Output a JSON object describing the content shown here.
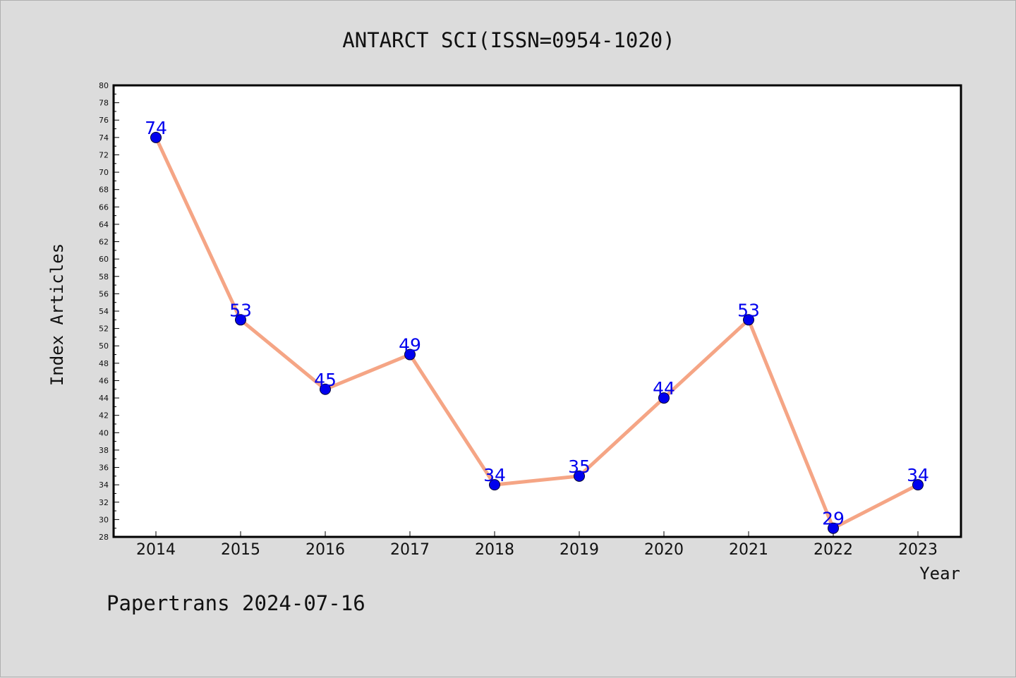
{
  "chart_data": {
    "type": "line",
    "title": "ANTARCT SCI(ISSN=0954-1020)",
    "xlabel": "Year",
    "ylabel": "Index Articles",
    "categories": [
      "2014",
      "2015",
      "2016",
      "2017",
      "2018",
      "2019",
      "2020",
      "2021",
      "2022",
      "2023"
    ],
    "series": [
      {
        "values": [
          74,
          53,
          45,
          49,
          34,
          35,
          44,
          53,
          29,
          34
        ]
      }
    ],
    "ylim": [
      28,
      80
    ],
    "ytick_step": 2,
    "data_labels": true,
    "grid": false,
    "footer": "Papertrans 2024-07-16",
    "colors": {
      "background": "#dcdcdc",
      "plot_background": "#ffffff",
      "line": "#f5a585",
      "marker": "#0000ee",
      "data_label": "#0000ee"
    }
  }
}
